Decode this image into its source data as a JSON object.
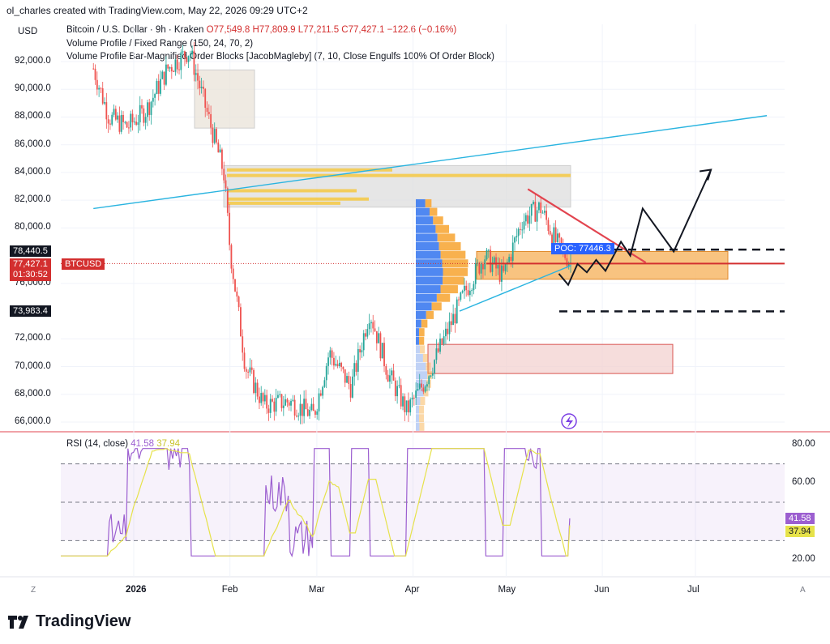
{
  "header": {
    "text": "ol_charles created with TradingView.com, May 22, 2026 09:29 UTC+2"
  },
  "currency": "USD",
  "legend": {
    "symbol": "Bitcoin / U.S. Dollar · 9h · Kraken",
    "open": "O77,549.8",
    "high": "H77,809.9",
    "low": "L77,211.5",
    "close": "C77,427.1",
    "change": "−122.6 (−0.16%)",
    "indicator1": "Volume Profile / Fixed Range (150, 24, 70, 2)",
    "indicator2": "Volume Profile Bar-Magnified Order Blocks [JacobMagleby] (7, 10, Close Engulfs 100% Of Order Block)"
  },
  "price_labels": {
    "upper_level": "78,440.5",
    "current_price": "77,427.1",
    "countdown": "01:30:52",
    "ticker": "BTCUSD",
    "lower_level": "73,983.4",
    "poc": "POC: 77446.3"
  },
  "rsi": {
    "label": "RSI (14, close)",
    "value": "41.58",
    "ma_value": "37.94",
    "colors": {
      "rsi": "#9c5fd0",
      "ma": "#e6e24a"
    }
  },
  "chart_data": [
    {
      "type": "candlestick",
      "title": "Bitcoin / U.S. Dollar · 9h · Kraken",
      "ylabel": "USD",
      "ylim": [
        65200,
        93500
      ],
      "y_ticks": [
        "92,000.0",
        "90,000.0",
        "88,000.0",
        "86,000.0",
        "84,000.0",
        "82,000.0",
        "80,000.0",
        "76,000.0",
        "72,000.0",
        "70,000.0",
        "68,000.0",
        "66,000.0"
      ],
      "x_ticks": [
        "2026",
        "Feb",
        "Mar",
        "Apr",
        "May",
        "Jun",
        "Jul"
      ],
      "approx_path": [
        {
          "x": "2025-12-19",
          "y": 91500
        },
        {
          "x": "2025-12-24",
          "y": 88000
        },
        {
          "x": "2025-12-30",
          "y": 87300
        },
        {
          "x": "2026-01-05",
          "y": 88500
        },
        {
          "x": "2026-01-12",
          "y": 91500
        },
        {
          "x": "2026-01-19",
          "y": 92800
        },
        {
          "x": "2026-01-25",
          "y": 88000
        },
        {
          "x": "2026-01-30",
          "y": 84000
        },
        {
          "x": "2026-02-01",
          "y": 78500
        },
        {
          "x": "2026-02-06",
          "y": 70000
        },
        {
          "x": "2026-02-12",
          "y": 67200
        },
        {
          "x": "2026-02-20",
          "y": 67500
        },
        {
          "x": "2026-02-28",
          "y": 66500
        },
        {
          "x": "2026-03-05",
          "y": 71000
        },
        {
          "x": "2026-03-12",
          "y": 68500
        },
        {
          "x": "2026-03-18",
          "y": 74000
        },
        {
          "x": "2026-03-24",
          "y": 69500
        },
        {
          "x": "2026-03-30",
          "y": 66800
        },
        {
          "x": "2026-04-05",
          "y": 69000
        },
        {
          "x": "2026-04-12",
          "y": 72500
        },
        {
          "x": "2026-04-18",
          "y": 75500
        },
        {
          "x": "2026-04-24",
          "y": 78000
        },
        {
          "x": "2026-04-30",
          "y": 76500
        },
        {
          "x": "2026-05-06",
          "y": 80500
        },
        {
          "x": "2026-05-12",
          "y": 81500
        },
        {
          "x": "2026-05-17",
          "y": 79000
        },
        {
          "x": "2026-05-22",
          "y": 77427
        }
      ],
      "levels": [
        {
          "label": "78,440.5",
          "y": 78440.5,
          "style": "dashed"
        },
        {
          "label": "77,427.1",
          "y": 77427.1,
          "style": "solid-red"
        },
        {
          "label": "73,983.4",
          "y": 73983.4,
          "style": "dashed"
        }
      ],
      "poc": {
        "label": "POC: 77446.3",
        "y": 77446.3
      },
      "order_blocks": [
        {
          "y1": 87200,
          "y2": 91400,
          "color": "#e9e3d8"
        },
        {
          "y1": 76300,
          "y2": 78300,
          "color": "#f7b86a"
        },
        {
          "y1": 69500,
          "y2": 71600,
          "color": "#f3d1d0"
        },
        {
          "y1": 81500,
          "y2": 84500,
          "color": "#dedede"
        }
      ],
      "trendlines": [
        {
          "color": "#2ab4e0",
          "from": {
            "x": "2025-12-19",
            "y": 81400
          },
          "to": {
            "x": "2026-07-24",
            "y": 88100
          }
        },
        {
          "color": "#2ab4e0",
          "from": {
            "x": "2026-04-16",
            "y": 74000
          },
          "to": {
            "x": "2026-05-22",
            "y": 77300
          }
        },
        {
          "color": "#e2444f",
          "from": {
            "x": "2026-05-08",
            "y": 82800
          },
          "to": {
            "x": "2026-06-15",
            "y": 77500
          }
        }
      ],
      "projection_path": [
        {
          "x": "2026-05-18",
          "y": 76700
        },
        {
          "x": "2026-05-21",
          "y": 75900
        },
        {
          "x": "2026-05-24",
          "y": 77400
        },
        {
          "x": "2026-05-27",
          "y": 76800
        },
        {
          "x": "2026-05-30",
          "y": 77700
        },
        {
          "x": "2026-06-02",
          "y": 76900
        },
        {
          "x": "2026-06-07",
          "y": 79000
        },
        {
          "x": "2026-06-10",
          "y": 78000
        },
        {
          "x": "2026-06-14",
          "y": 81400
        },
        {
          "x": "2026-06-24",
          "y": 78300
        },
        {
          "x": "2026-07-06",
          "y": 84200
        }
      ]
    },
    {
      "type": "line",
      "title": "RSI (14, close)",
      "ylim": [
        15,
        85
      ],
      "y_ticks": [
        "80.00",
        "60.00",
        "20.00"
      ],
      "bands": [
        70,
        50,
        30
      ],
      "series": [
        {
          "name": "RSI (14, close)",
          "current": 41.58
        },
        {
          "name": "MA",
          "current": 37.94
        }
      ]
    }
  ]
}
